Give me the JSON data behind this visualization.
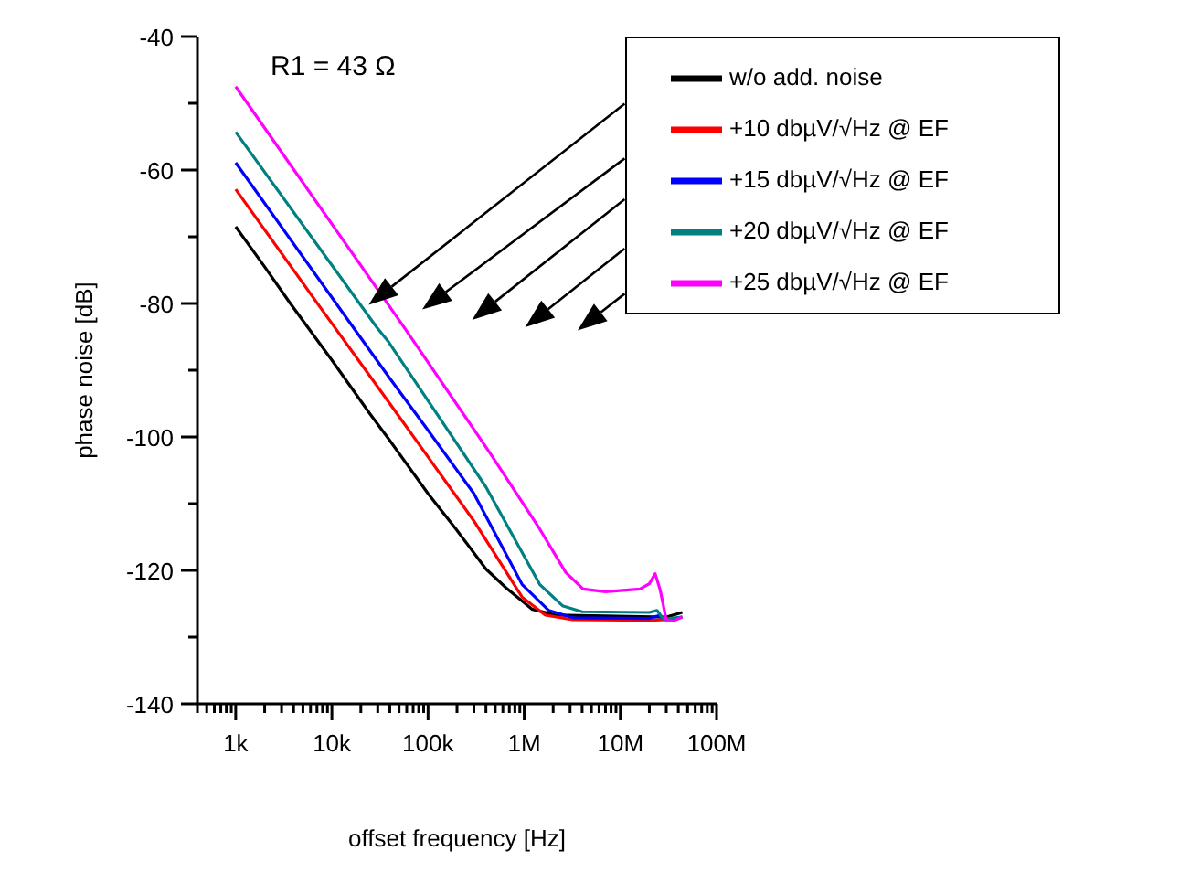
{
  "chart_data": {
    "type": "line",
    "xlabel": "offset frequency [Hz]",
    "ylabel": "phase noise [dB]",
    "log": "x",
    "grid": false,
    "legend": "top right",
    "marker": "none",
    "line_style": "solid",
    "annotations": [
      "R1 = 43 Ω"
    ],
    "xlim": [
      400,
      100000000
    ],
    "xticks": [
      {
        "value": 400,
        "label": null
      },
      {
        "value": 500,
        "label": null
      },
      {
        "value": 600,
        "label": null
      },
      {
        "value": 700,
        "label": null
      },
      {
        "value": 800,
        "label": null
      },
      {
        "value": 900,
        "label": null
      },
      {
        "value": 1000,
        "label": "1k"
      },
      {
        "value": 2000,
        "label": null
      },
      {
        "value": 3000,
        "label": null
      },
      {
        "value": 4000,
        "label": null
      },
      {
        "value": 5000,
        "label": null
      },
      {
        "value": 6000,
        "label": null
      },
      {
        "value": 7000,
        "label": null
      },
      {
        "value": 8000,
        "label": null
      },
      {
        "value": 9000,
        "label": null
      },
      {
        "value": 10000,
        "label": "10k"
      },
      {
        "value": 20000,
        "label": null
      },
      {
        "value": 30000,
        "label": null
      },
      {
        "value": 40000,
        "label": null
      },
      {
        "value": 50000,
        "label": null
      },
      {
        "value": 60000,
        "label": null
      },
      {
        "value": 70000,
        "label": null
      },
      {
        "value": 80000,
        "label": null
      },
      {
        "value": 90000,
        "label": null
      },
      {
        "value": 100000,
        "label": "100k"
      },
      {
        "value": 200000,
        "label": null
      },
      {
        "value": 300000,
        "label": null
      },
      {
        "value": 400000,
        "label": null
      },
      {
        "value": 500000,
        "label": null
      },
      {
        "value": 600000,
        "label": null
      },
      {
        "value": 700000,
        "label": null
      },
      {
        "value": 800000,
        "label": null
      },
      {
        "value": 900000,
        "label": null
      },
      {
        "value": 1000000,
        "label": "1M"
      },
      {
        "value": 2000000,
        "label": null
      },
      {
        "value": 3000000,
        "label": null
      },
      {
        "value": 4000000,
        "label": null
      },
      {
        "value": 5000000,
        "label": null
      },
      {
        "value": 6000000,
        "label": null
      },
      {
        "value": 7000000,
        "label": null
      },
      {
        "value": 8000000,
        "label": null
      },
      {
        "value": 9000000,
        "label": null
      },
      {
        "value": 10000000,
        "label": "10M"
      },
      {
        "value": 20000000,
        "label": null
      },
      {
        "value": 30000000,
        "label": null
      },
      {
        "value": 40000000,
        "label": null
      },
      {
        "value": 50000000,
        "label": null
      },
      {
        "value": 60000000,
        "label": null
      },
      {
        "value": 70000000,
        "label": null
      },
      {
        "value": 80000000,
        "label": null
      },
      {
        "value": 90000000,
        "label": null
      },
      {
        "value": 100000000,
        "label": "100M"
      }
    ],
    "ylim": [
      -140,
      -40
    ],
    "yticks": [
      -140,
      {
        "value": -130,
        "label": null
      },
      -120,
      {
        "value": -110,
        "label": null
      },
      -100,
      {
        "value": -90,
        "label": null
      },
      -80,
      {
        "value": -70,
        "label": null
      },
      -60,
      {
        "value": -50,
        "label": null
      },
      -40
    ],
    "series": [
      {
        "name": "w/o add. noise",
        "color": "#000000",
        "x": [
          1000,
          2000,
          3700,
          10000,
          24500,
          39000,
          100000,
          195000,
          400000,
          646000,
          1200000,
          2100000,
          30000000,
          44000000
        ],
        "values": [
          -68.5,
          -74.5,
          -80,
          -88.5,
          -96.4,
          -100.3,
          -108.5,
          -113.8,
          -119.8,
          -122.6,
          -125.8,
          -126.7,
          -127,
          -126.3
        ]
      },
      {
        "name": "+10 dbµV/√Hz @ EF",
        "color": "#ff0000",
        "x": [
          1000,
          7500,
          40000,
          100000,
          300000,
          950000,
          1660000,
          3200000,
          20000000,
          30000000
        ],
        "values": [
          -62.9,
          -80.5,
          -95,
          -103,
          -112.6,
          -124,
          -126.7,
          -127.4,
          -127.5,
          -127.4
        ]
      },
      {
        "name": "+15 dbµV/√Hz @ EF",
        "color": "#0000ff",
        "x": [
          1000,
          14400,
          39000,
          100000,
          300000,
          950000,
          1800000,
          3200000,
          20000000,
          25000000,
          30000000,
          44000000
        ],
        "values": [
          -58.9,
          -82.3,
          -91,
          -99,
          -108.5,
          -122.1,
          -126,
          -127.1,
          -127.2,
          -126.8,
          -127.4,
          -127
        ]
      },
      {
        "name": "+20 dbµV/√Hz @ EF",
        "color": "#008080",
        "x": [
          1000,
          29000,
          39000,
          400000,
          1450000,
          2500000,
          4000000,
          20000000,
          24000000,
          28000000,
          44000000
        ],
        "values": [
          -54.3,
          -83.5,
          -85.8,
          -107.5,
          -122.1,
          -125.3,
          -126.2,
          -126.3,
          -126,
          -127.3,
          -127
        ]
      },
      {
        "name": "+25 dbµV/√Hz @ EF",
        "color": "#ff00ff",
        "x": [
          1000,
          56000,
          436000,
          1450000,
          2700000,
          4100000,
          7000000,
          16000000,
          20000000,
          23000000,
          26000000,
          30000000,
          35000000,
          44000000
        ],
        "values": [
          -47.5,
          -83.5,
          -102.3,
          -113.8,
          -120.3,
          -122.8,
          -123.2,
          -122.8,
          -122,
          -120.5,
          -123,
          -127.4,
          -127.6,
          -127
        ]
      }
    ]
  }
}
